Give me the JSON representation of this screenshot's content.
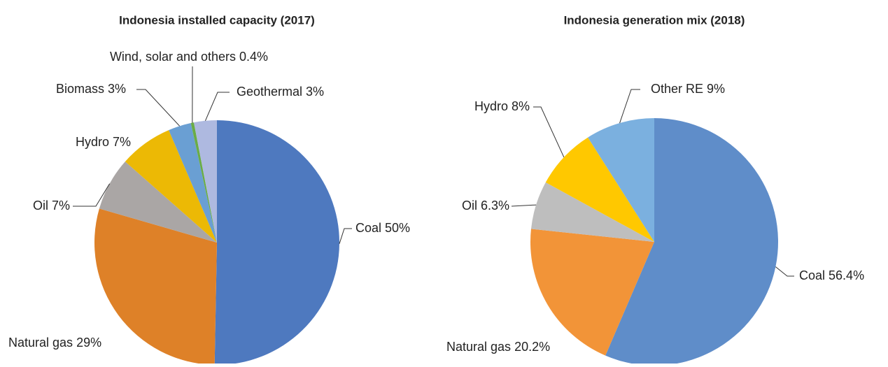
{
  "chart_data": [
    {
      "type": "pie",
      "title": "Indonesia installed capacity (2017)",
      "categories": [
        "Coal",
        "Natural gas",
        "Oil",
        "Hydro",
        "Biomass",
        "Wind, solar and others",
        "Geothermal"
      ],
      "values": [
        50,
        29,
        7,
        7,
        3,
        0.4,
        3
      ],
      "value_labels": [
        "50%",
        "29%",
        "7%",
        "7%",
        "3%",
        "0.4%",
        "3%"
      ],
      "colors": [
        "#4e79bf",
        "#de8128",
        "#aaa6a5",
        "#ecb905",
        "#6a9fd3",
        "#6aac46",
        "#aeb9e0"
      ]
    },
    {
      "type": "pie",
      "title": "Indonesia generation mix (2018)",
      "categories": [
        "Coal",
        "Natural gas",
        "Oil",
        "Hydro",
        "Other RE"
      ],
      "values": [
        56.4,
        20.2,
        6.3,
        8,
        9
      ],
      "value_labels": [
        "56.4%",
        "20.2%",
        "6.3%",
        "8%",
        "9%"
      ],
      "colors": [
        "#5f8dc9",
        "#f29438",
        "#bebebe",
        "#ffc800",
        "#7bb0df"
      ]
    }
  ]
}
